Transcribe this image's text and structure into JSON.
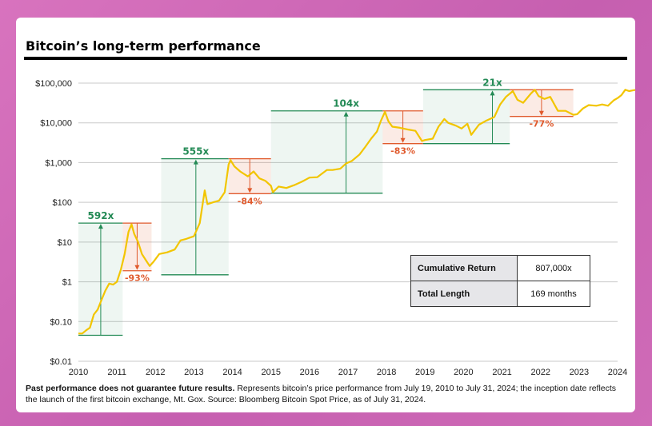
{
  "header": {
    "title": "Bitcoin’s long-term performance"
  },
  "chart_data": {
    "type": "line",
    "yscale": "log",
    "ylim": [
      0.01,
      100000
    ],
    "xlim": [
      2010,
      2024
    ],
    "y_ticks": [
      {
        "value": 100000,
        "label": "$100,000"
      },
      {
        "value": 10000,
        "label": "$10,000"
      },
      {
        "value": 1000,
        "label": "$1,000"
      },
      {
        "value": 100,
        "label": "$100"
      },
      {
        "value": 10,
        "label": "$10"
      },
      {
        "value": 1,
        "label": "$1"
      },
      {
        "value": 0.1,
        "label": "$0.10"
      },
      {
        "value": 0.01,
        "label": "$0.01"
      }
    ],
    "x_ticks": [
      "2010",
      "2011",
      "2012",
      "2013",
      "2014",
      "2015",
      "2016",
      "2017",
      "2018",
      "2019",
      "2020",
      "2021",
      "2022",
      "2023",
      "2024"
    ],
    "grid": "horizontal",
    "series_color": "#f2c500",
    "gain_color": "#238a55",
    "loss_color": "#e05a2d",
    "series": [
      {
        "points": [
          [
            2010.0,
            0.05
          ],
          [
            2010.1,
            0.05
          ],
          [
            2010.2,
            0.06
          ],
          [
            2010.3,
            0.07
          ],
          [
            2010.4,
            0.15
          ],
          [
            2010.5,
            0.2
          ],
          [
            2010.6,
            0.35
          ],
          [
            2010.7,
            0.6
          ],
          [
            2010.8,
            0.9
          ],
          [
            2010.9,
            0.85
          ],
          [
            2011.0,
            1.0
          ],
          [
            2011.1,
            2.0
          ],
          [
            2011.2,
            5.0
          ],
          [
            2011.3,
            18.0
          ],
          [
            2011.38,
            28.0
          ],
          [
            2011.45,
            16.0
          ],
          [
            2011.55,
            10.0
          ],
          [
            2011.65,
            5.0
          ],
          [
            2011.75,
            3.5
          ],
          [
            2011.85,
            2.5
          ],
          [
            2011.95,
            3.2
          ],
          [
            2012.1,
            5.0
          ],
          [
            2012.3,
            5.5
          ],
          [
            2012.5,
            6.5
          ],
          [
            2012.65,
            11.0
          ],
          [
            2012.8,
            12.0
          ],
          [
            2012.9,
            13.0
          ],
          [
            2013.0,
            14.0
          ],
          [
            2013.15,
            30.0
          ],
          [
            2013.28,
            200.0
          ],
          [
            2013.35,
            90.0
          ],
          [
            2013.5,
            100.0
          ],
          [
            2013.65,
            110.0
          ],
          [
            2013.8,
            180.0
          ],
          [
            2013.9,
            900.0
          ],
          [
            2013.95,
            1150.0
          ],
          [
            2014.05,
            800.0
          ],
          [
            2014.2,
            600.0
          ],
          [
            2014.4,
            450.0
          ],
          [
            2014.55,
            600.0
          ],
          [
            2014.7,
            400.0
          ],
          [
            2014.85,
            350.0
          ],
          [
            2015.0,
            260.0
          ],
          [
            2015.05,
            180.0
          ],
          [
            2015.2,
            250.0
          ],
          [
            2015.4,
            230.0
          ],
          [
            2015.6,
            270.0
          ],
          [
            2015.8,
            330.0
          ],
          [
            2016.0,
            420.0
          ],
          [
            2016.2,
            430.0
          ],
          [
            2016.45,
            650.0
          ],
          [
            2016.6,
            650.0
          ],
          [
            2016.8,
            700.0
          ],
          [
            2016.95,
            950.0
          ],
          [
            2017.1,
            1100.0
          ],
          [
            2017.3,
            1600.0
          ],
          [
            2017.45,
            2500.0
          ],
          [
            2017.6,
            4000.0
          ],
          [
            2017.75,
            6000.0
          ],
          [
            2017.85,
            11000.0
          ],
          [
            2017.96,
            19000.0
          ],
          [
            2018.05,
            11000.0
          ],
          [
            2018.15,
            8000.0
          ],
          [
            2018.35,
            7500.0
          ],
          [
            2018.55,
            6800.0
          ],
          [
            2018.75,
            6300.0
          ],
          [
            2018.92,
            3500.0
          ],
          [
            2019.0,
            3700.0
          ],
          [
            2019.2,
            4000.0
          ],
          [
            2019.35,
            8000.0
          ],
          [
            2019.5,
            12500.0
          ],
          [
            2019.6,
            10000.0
          ],
          [
            2019.8,
            8500.0
          ],
          [
            2019.95,
            7200.0
          ],
          [
            2020.1,
            9500.0
          ],
          [
            2020.2,
            5000.0
          ],
          [
            2020.4,
            9000.0
          ],
          [
            2020.6,
            11500.0
          ],
          [
            2020.8,
            14000.0
          ],
          [
            2020.95,
            29000.0
          ],
          [
            2021.1,
            45000.0
          ],
          [
            2021.28,
            63000.0
          ],
          [
            2021.4,
            38000.0
          ],
          [
            2021.55,
            32000.0
          ],
          [
            2021.75,
            55000.0
          ],
          [
            2021.85,
            68000.0
          ],
          [
            2021.95,
            47000.0
          ],
          [
            2022.1,
            40000.0
          ],
          [
            2022.25,
            45000.0
          ],
          [
            2022.45,
            20000.0
          ],
          [
            2022.65,
            20000.0
          ],
          [
            2022.85,
            16000.0
          ],
          [
            2022.95,
            16500.0
          ],
          [
            2023.1,
            23000.0
          ],
          [
            2023.25,
            28000.0
          ],
          [
            2023.45,
            27000.0
          ],
          [
            2023.6,
            29000.0
          ],
          [
            2023.75,
            27000.0
          ],
          [
            2023.9,
            37000.0
          ],
          [
            2024.0,
            42000.0
          ],
          [
            2024.1,
            50000.0
          ],
          [
            2024.2,
            68000.0
          ],
          [
            2024.3,
            63000.0
          ],
          [
            2024.45,
            67000.0
          ],
          [
            2024.55,
            58000.0
          ],
          [
            2024.58,
            65000.0
          ]
        ]
      }
    ],
    "cycles": [
      {
        "gain_label": "592x",
        "loss_label": "-93%",
        "low_date": 2010.0,
        "peak_date": 2011.15,
        "trough_date": 2011.9,
        "low": 0.045,
        "peak": 30,
        "trough": 1.9,
        "label_date": 2010.58
      },
      {
        "gain_label": "555x",
        "loss_label": "-84%",
        "low_date": 2012.15,
        "peak_date": 2013.9,
        "trough_date": 2015.0,
        "low": 1.5,
        "peak": 1250,
        "trough": 165,
        "label_date": 2013.05
      },
      {
        "gain_label": "104x",
        "loss_label": "-83%",
        "low_date": 2015.0,
        "peak_date": 2017.9,
        "trough_date": 2018.95,
        "low": 170,
        "peak": 20000,
        "trough": 3000,
        "label_date": 2016.95
      },
      {
        "gain_label": "21x",
        "loss_label": "-77%",
        "low_date": 2018.95,
        "peak_date": 2021.2,
        "trough_date": 2022.85,
        "low": 3000,
        "peak": 68000,
        "trough": 14500,
        "label_date": 2020.75
      }
    ]
  },
  "stats": {
    "cumulative_label": "Cumulative Return",
    "cumulative_value": "807,000x",
    "length_label": "Total Length",
    "length_value": "169 months"
  },
  "footer": {
    "bold": "Past performance does not guarantee future results.",
    "text": " Represents bitcoin’s price performance from July 19, 2010 to July 31, 2024; the inception date reflects the launch of the first bitcoin exchange, Mt. Gox. Source: Bloomberg Bitcoin Spot Price, as of July 31, 2024."
  }
}
